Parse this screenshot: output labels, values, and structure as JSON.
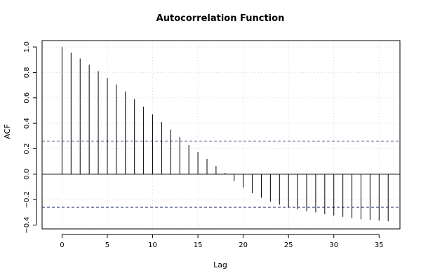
{
  "chart_data": {
    "type": "bar",
    "title": "Autocorrelation Function",
    "xlabel": "Lag",
    "ylabel": "ACF",
    "xlim": [
      -2.2,
      37.3
    ],
    "ylim": [
      -0.43,
      1.05
    ],
    "x_ticks": [
      0,
      5,
      10,
      15,
      20,
      25,
      30,
      35
    ],
    "x_tick_labels": [
      "0",
      "5",
      "10",
      "15",
      "20",
      "25",
      "30",
      "35"
    ],
    "y_ticks": [
      -0.4,
      -0.2,
      0.0,
      0.2,
      0.4,
      0.6,
      0.8,
      1.0
    ],
    "y_tick_labels": [
      "−0.4",
      "−0.2",
      "0.0",
      "0.2",
      "0.4",
      "0.6",
      "0.8",
      "1.0"
    ],
    "grid": true,
    "confidence_bounds": [
      0.26,
      -0.26
    ],
    "x": [
      0,
      1,
      2,
      3,
      4,
      5,
      6,
      7,
      8,
      9,
      10,
      11,
      12,
      13,
      14,
      15,
      16,
      17,
      18,
      19,
      20,
      21,
      22,
      23,
      24,
      25,
      26,
      27,
      28,
      29,
      30,
      31,
      32,
      33,
      34,
      35,
      36
    ],
    "values": [
      1.0,
      0.955,
      0.91,
      0.86,
      0.81,
      0.755,
      0.705,
      0.65,
      0.59,
      0.53,
      0.47,
      0.41,
      0.35,
      0.29,
      0.23,
      0.175,
      0.12,
      0.065,
      0.01,
      -0.055,
      -0.105,
      -0.15,
      -0.185,
      -0.215,
      -0.24,
      -0.26,
      -0.275,
      -0.29,
      -0.3,
      -0.315,
      -0.325,
      -0.335,
      -0.345,
      -0.355,
      -0.36,
      -0.365,
      -0.37
    ],
    "colors": {
      "bars": "#000000",
      "zero_line": "#000000",
      "bounds": "#2f3b7a",
      "grid": "#d9d9d9",
      "frame": "#000000"
    }
  }
}
